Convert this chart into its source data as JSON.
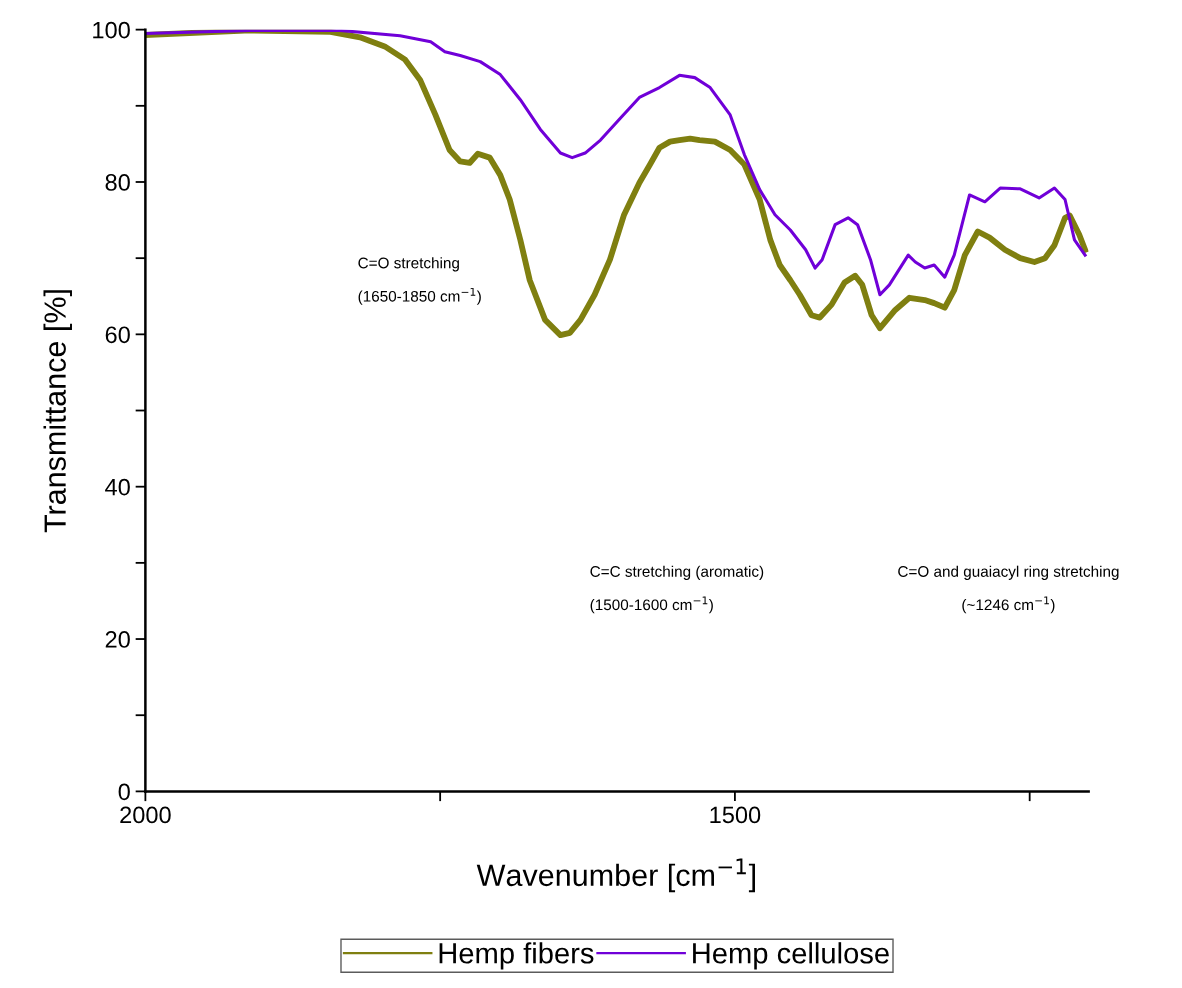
{
  "chart_data": {
    "type": "line",
    "xlabel": "Wavenumber [cm$^{−1}$]",
    "ylabel": "Transmittance [%]",
    "xlim": [
      2000,
      1200
    ],
    "xticks": [
      2000,
      {
        "value": 1750,
        "label": null
      },
      1500,
      {
        "value": 1250,
        "label": null
      }
    ],
    "ylim": [
      0,
      100
    ],
    "yticks": [
      0,
      {
        "value": 10,
        "label": null
      },
      20,
      {
        "value": 30,
        "label": null
      },
      40,
      {
        "value": 50,
        "label": null
      },
      60,
      {
        "value": 70,
        "label": null
      },
      80,
      {
        "value": 90,
        "label": null
      },
      100
    ],
    "grid": false,
    "legend": "bottom",
    "line_style": "solid",
    "marker": "none",
    "annotations": [
      "C=O stretching\n(1650-1850 cm$^{−1}$)",
      "C=C stretching (aromatic)\n(1500-1600 cm$^{−1}$)",
      "C=O and guaiacyl ring stretching\n(~1246 cm$^{−1}$)"
    ],
    "series": [
      {
        "name": "Hemp fibers",
        "color": "#7f7f10",
        "x": [
          2000,
          1911,
          1843,
          1818,
          1797,
          1780,
          1767,
          1754,
          1742,
          1733,
          1725,
          1718,
          1708,
          1699,
          1691,
          1682,
          1674,
          1661,
          1648,
          1640,
          1631,
          1619,
          1606,
          1594,
          1581,
          1572,
          1564,
          1555,
          1547,
          1538,
          1530,
          1517,
          1504,
          1492,
          1479,
          1470,
          1462,
          1453,
          1445,
          1435,
          1428,
          1418,
          1407,
          1398,
          1392,
          1384,
          1377,
          1364,
          1352,
          1339,
          1331,
          1322,
          1314,
          1305,
          1294,
          1284,
          1271,
          1258,
          1246,
          1237,
          1229,
          1220,
          1216,
          1208,
          1203
        ],
        "values": [
          99.3,
          99.9,
          99.7,
          99.0,
          97.8,
          96.1,
          93.4,
          88.8,
          84.2,
          82.7,
          82.5,
          83.7,
          83.2,
          80.9,
          77.7,
          72.4,
          67.1,
          61.9,
          59.9,
          60.2,
          61.9,
          65.2,
          69.8,
          75.7,
          79.9,
          82.3,
          84.5,
          85.3,
          85.5,
          85.7,
          85.5,
          85.3,
          84.2,
          82.3,
          77.7,
          72.4,
          69.1,
          67.1,
          65.2,
          62.5,
          62.2,
          63.9,
          66.8,
          67.7,
          66.5,
          62.5,
          60.8,
          63.2,
          64.8,
          64.5,
          64.1,
          63.5,
          65.8,
          70.4,
          73.5,
          72.7,
          71.1,
          70.0,
          69.5,
          70.0,
          71.7,
          75.3,
          75.6,
          73.1,
          71.1
        ]
      },
      {
        "name": "Hemp cellulose",
        "color": "#7000d8",
        "x": [
          2000,
          1911,
          1835,
          1784,
          1758,
          1746,
          1733,
          1716,
          1699,
          1682,
          1665,
          1648,
          1638,
          1627,
          1614,
          1597,
          1581,
          1564,
          1547,
          1534,
          1521,
          1504,
          1492,
          1479,
          1466,
          1453,
          1440,
          1432,
          1426,
          1415,
          1404,
          1396,
          1385,
          1377,
          1369,
          1353,
          1347,
          1339,
          1331,
          1322,
          1314,
          1301,
          1288,
          1275,
          1258,
          1242,
          1229,
          1220,
          1212,
          1203
        ],
        "values": [
          99.5,
          99.9,
          99.9,
          99.2,
          98.4,
          97.1,
          96.6,
          95.8,
          94.1,
          90.8,
          86.9,
          83.8,
          83.2,
          83.8,
          85.5,
          88.4,
          91.1,
          92.4,
          94.0,
          93.7,
          92.4,
          88.8,
          83.6,
          79.0,
          75.7,
          73.7,
          71.1,
          68.7,
          69.8,
          74.4,
          75.3,
          74.4,
          69.8,
          65.2,
          66.5,
          70.4,
          69.5,
          68.7,
          69.1,
          67.5,
          70.4,
          78.3,
          77.4,
          79.2,
          79.1,
          77.9,
          79.2,
          77.7,
          72.4,
          70.4
        ]
      }
    ]
  }
}
